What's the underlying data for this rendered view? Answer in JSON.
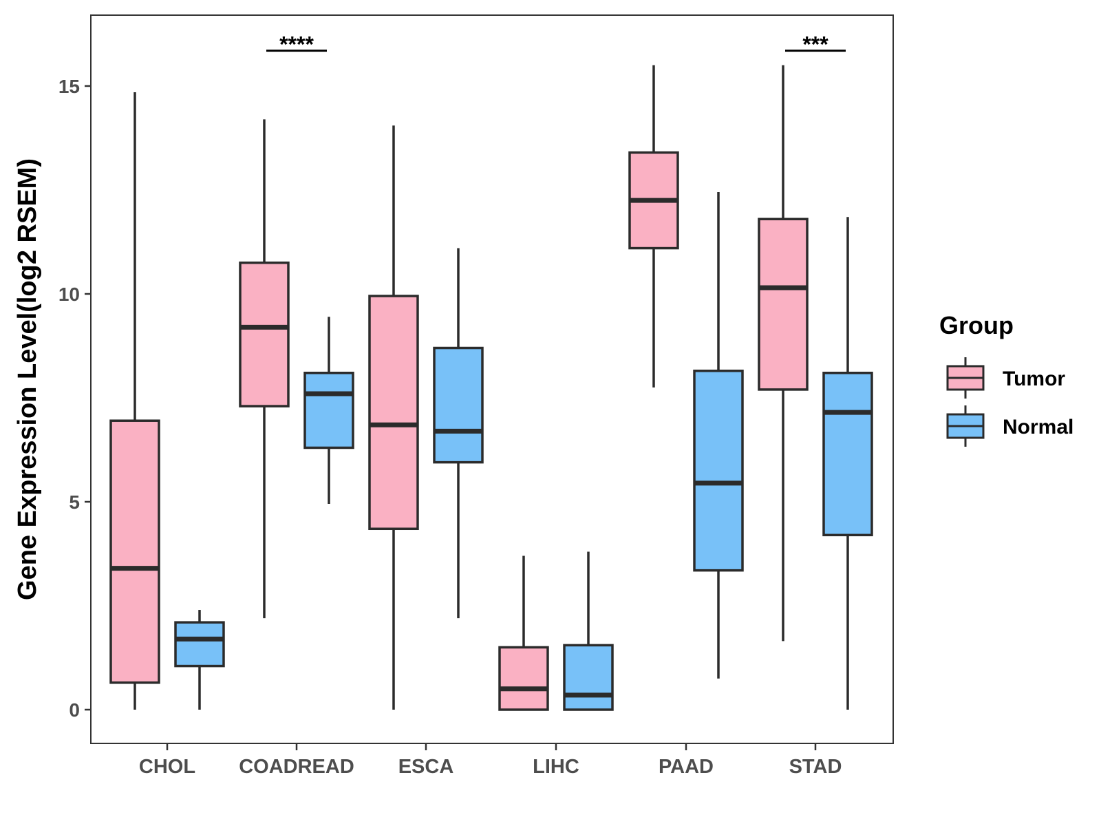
{
  "chart_data": {
    "type": "boxplot",
    "title": "",
    "xlabel": "",
    "ylabel": "Gene Expression Level(log2 RSEM)",
    "ylim": [
      -0.8,
      16.7
    ],
    "yticks": [
      0,
      5,
      10,
      15
    ],
    "ytick_labels": [
      "0",
      "5",
      "10",
      "15"
    ],
    "categories": [
      "CHOL",
      "COADREAD",
      "ESCA",
      "LIHC",
      "PAAD",
      "STAD"
    ],
    "legend": {
      "title": "Group",
      "placement": "right",
      "entries": [
        {
          "name": "Tumor",
          "color": "#fab1c3"
        },
        {
          "name": "Normal",
          "color": "#78c1f8"
        }
      ]
    },
    "series": [
      {
        "name": "Tumor",
        "color": "#fab1c3",
        "boxes": [
          {
            "category": "CHOL",
            "min": 0.0,
            "q1": 0.65,
            "median": 3.4,
            "q3": 6.95,
            "max": 14.85
          },
          {
            "category": "COADREAD",
            "min": 2.2,
            "q1": 7.3,
            "median": 9.2,
            "q3": 10.75,
            "max": 14.2
          },
          {
            "category": "ESCA",
            "min": 0.0,
            "q1": 4.35,
            "median": 6.85,
            "q3": 9.95,
            "max": 14.05
          },
          {
            "category": "LIHC",
            "min": 0.0,
            "q1": 0.0,
            "median": 0.5,
            "q3": 1.5,
            "max": 3.7
          },
          {
            "category": "PAAD",
            "min": 7.75,
            "q1": 11.1,
            "median": 12.25,
            "q3": 13.4,
            "max": 15.5
          },
          {
            "category": "STAD",
            "min": 1.65,
            "q1": 7.7,
            "median": 10.15,
            "q3": 11.8,
            "max": 15.5
          }
        ]
      },
      {
        "name": "Normal",
        "color": "#78c1f8",
        "boxes": [
          {
            "category": "CHOL",
            "min": 0.0,
            "q1": 1.05,
            "median": 1.7,
            "q3": 2.1,
            "max": 2.4
          },
          {
            "category": "COADREAD",
            "min": 4.95,
            "q1": 6.3,
            "median": 7.6,
            "q3": 8.1,
            "max": 9.45
          },
          {
            "category": "ESCA",
            "min": 2.2,
            "q1": 5.95,
            "median": 6.7,
            "q3": 8.7,
            "max": 11.1
          },
          {
            "category": "LIHC",
            "min": 0.0,
            "q1": 0.0,
            "median": 0.35,
            "q3": 1.55,
            "max": 3.8
          },
          {
            "category": "PAAD",
            "min": 0.75,
            "q1": 3.35,
            "median": 5.45,
            "q3": 8.15,
            "max": 12.45
          },
          {
            "category": "STAD",
            "min": 0.0,
            "q1": 4.2,
            "median": 7.15,
            "q3": 8.1,
            "max": 11.85
          }
        ]
      }
    ],
    "annotations": [
      {
        "category": "COADREAD",
        "label": "****",
        "y": 15.85
      },
      {
        "category": "STAD",
        "label": "***",
        "y": 15.85
      }
    ]
  }
}
